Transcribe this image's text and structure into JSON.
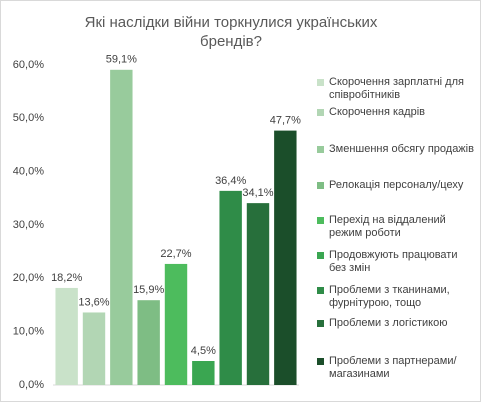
{
  "chart_data": {
    "type": "bar",
    "title": "Які наслідки війни торкнулися українських брендів?",
    "categories": [
      "Скорочення зарплатні для співробітників",
      "Скорочення кадрів",
      "Зменшення обсягу продажів",
      "Релокація персоналу/цеху",
      "Перехід на віддалений режим роботи",
      "Продовжують працювати без змін",
      "Проблеми з тканинами, фурнітурою, тощо",
      "Проблеми з логістикою",
      "Проблеми з партнерами/магазинами"
    ],
    "values": [
      18.2,
      13.6,
      59.1,
      15.9,
      22.7,
      4.5,
      36.4,
      34.1,
      47.7
    ],
    "value_labels": [
      "18,2%",
      "13,6%",
      "59,1%",
      "15,9%",
      "22,7%",
      "4,5%",
      "36,4%",
      "34,1%",
      "47,7%"
    ],
    "colors": [
      "#c9e2c9",
      "#b2d6b4",
      "#98cb9c",
      "#7ebd84",
      "#4dbc5d",
      "#3aa651",
      "#2f8c48",
      "#276f3b",
      "#1b4e2a"
    ],
    "ylim": [
      0,
      60
    ],
    "yticks": [
      {
        "value": 0,
        "label": "0,0%"
      },
      {
        "value": 10,
        "label": "10,0%"
      },
      {
        "value": 20,
        "label": "20,0%"
      },
      {
        "value": 30,
        "label": "30,0%"
      },
      {
        "value": 40,
        "label": "40,0%"
      },
      {
        "value": 50,
        "label": "50,0%"
      },
      {
        "value": 60,
        "label": "60,0%"
      }
    ],
    "grid": false,
    "legend": "right"
  }
}
